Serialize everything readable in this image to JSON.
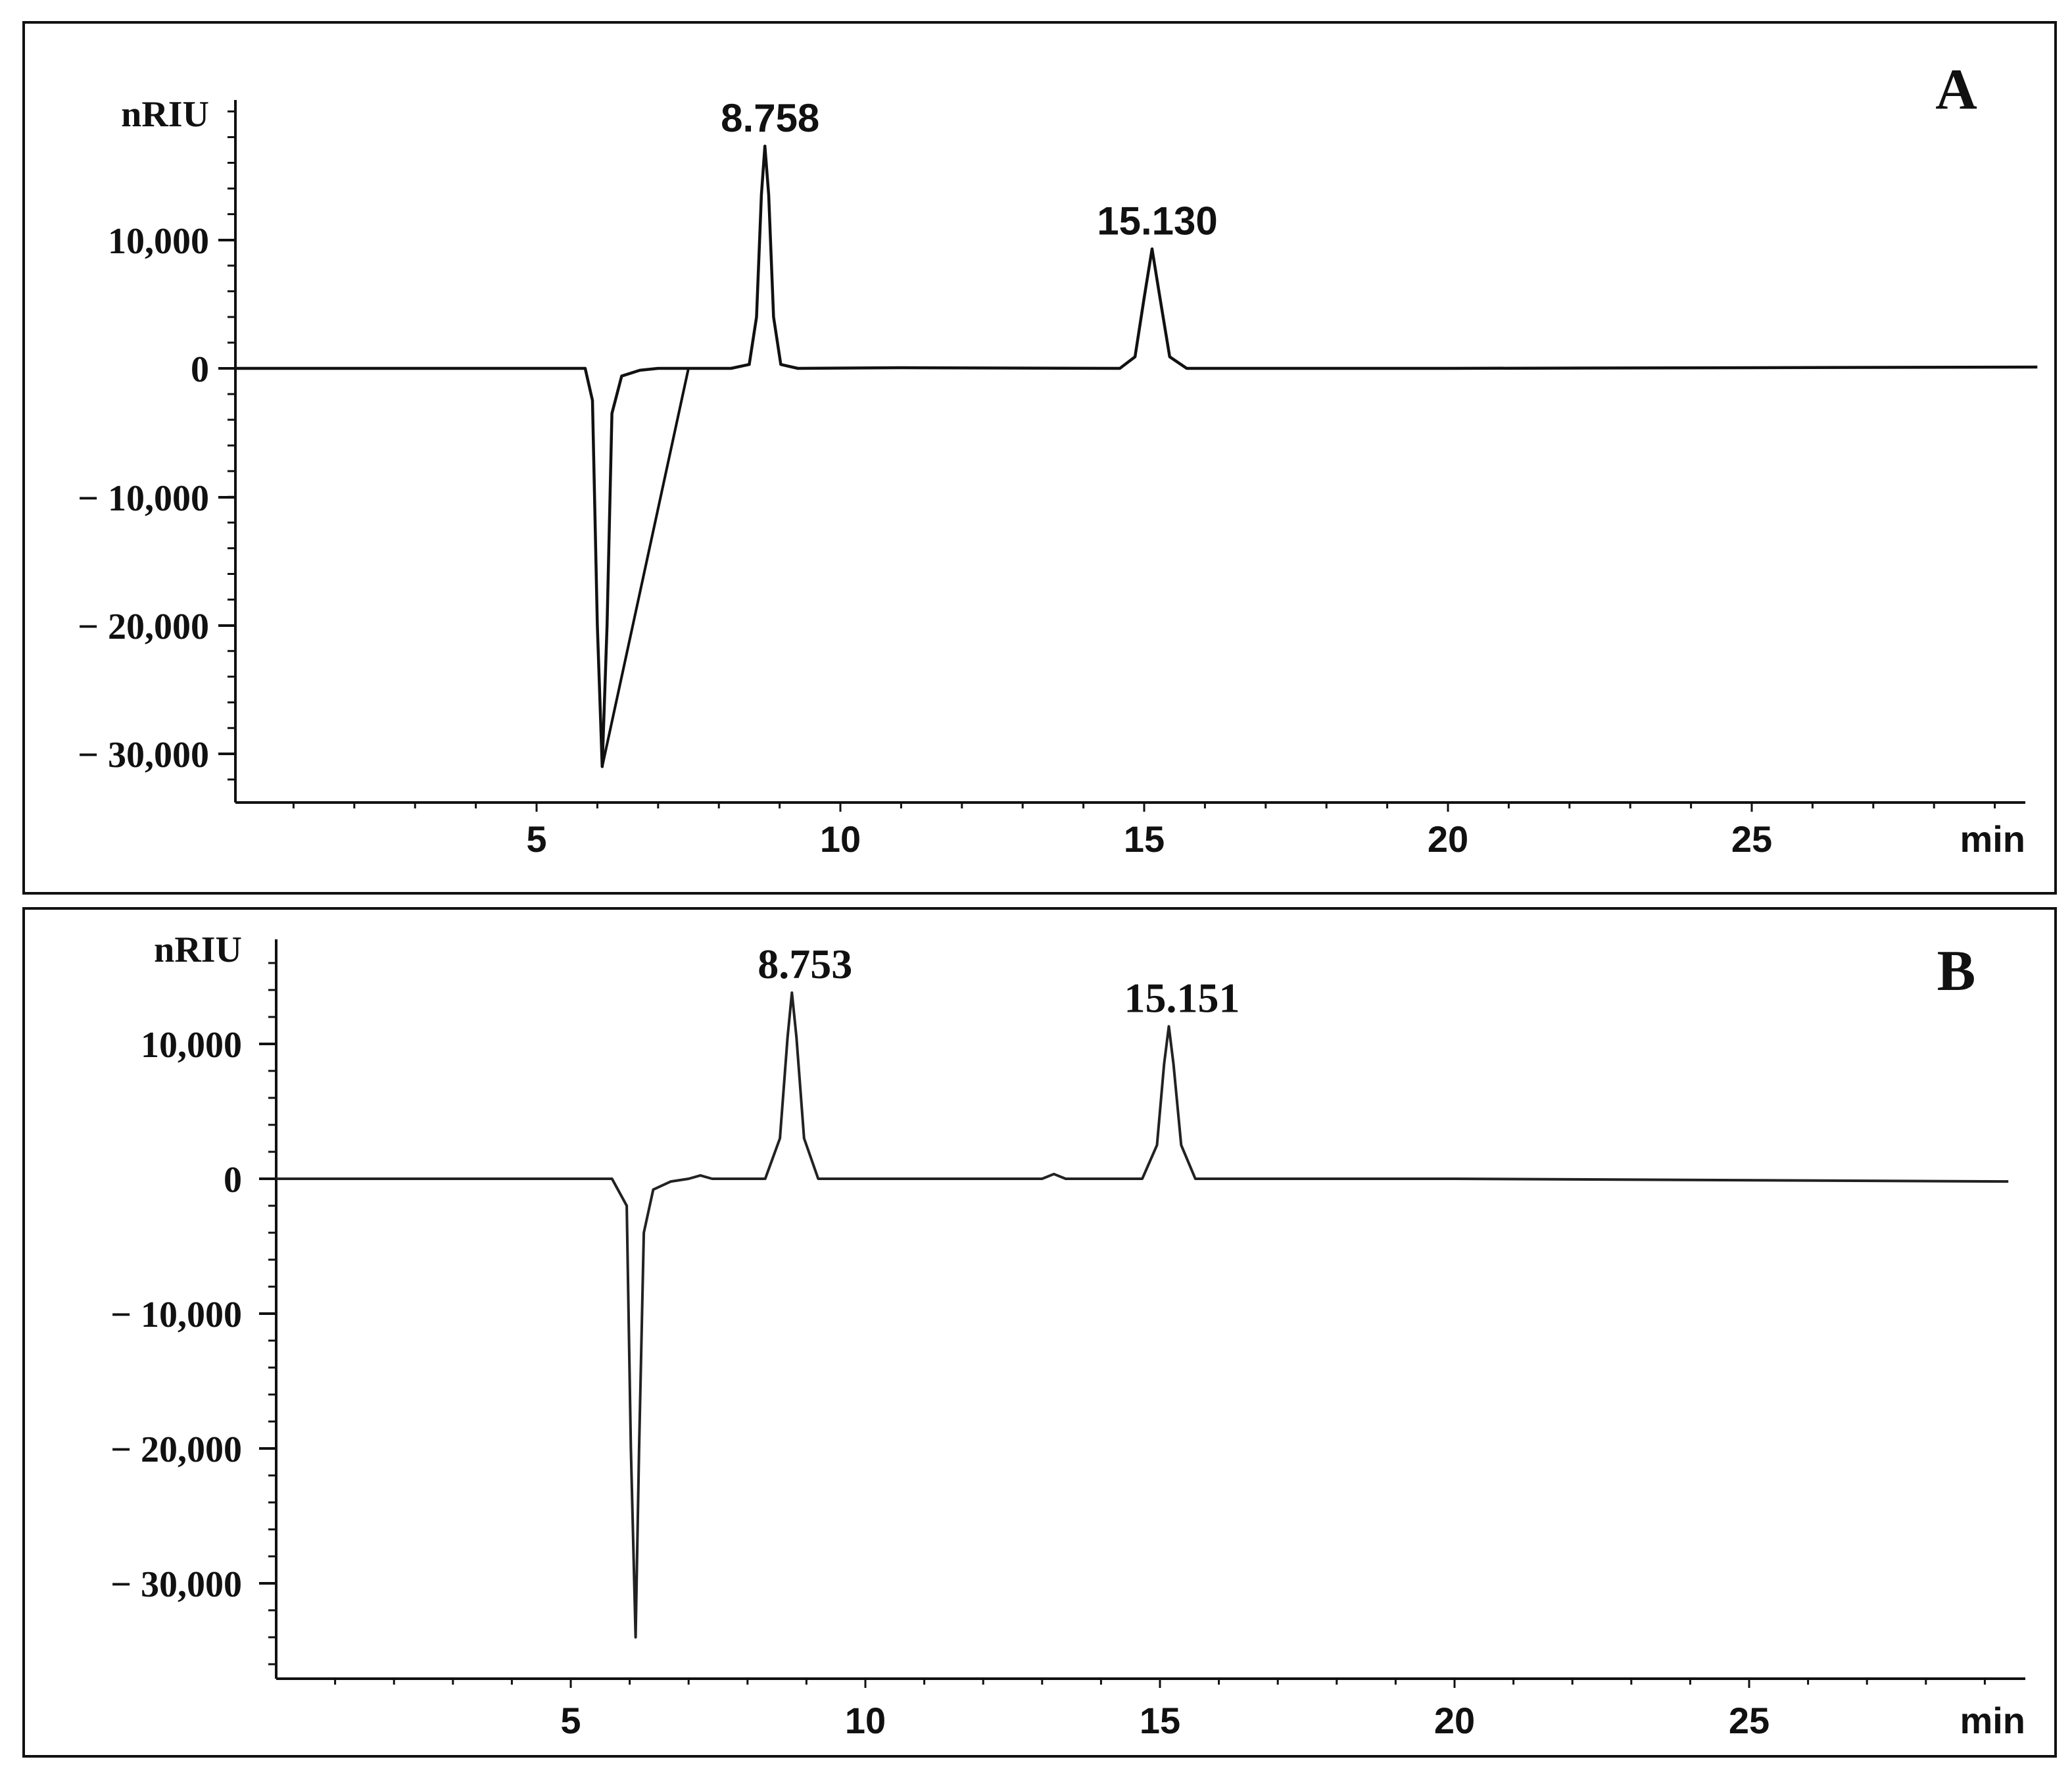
{
  "chart_data": [
    {
      "type": "line",
      "panel_label": "A",
      "ylabel": "nRIU",
      "xunit": "min",
      "xlim": [
        0,
        29.7
      ],
      "ylim": [
        -34000,
        20500
      ],
      "x_ticks": [
        "5",
        "10",
        "15",
        "20",
        "25"
      ],
      "y_ticks": [
        "10,000",
        "0",
        "− 10,000",
        "− 20,000",
        "− 30,000"
      ],
      "series": [
        {
          "x": [
            0,
            1.3,
            4.2,
            5.8,
            5.92,
            6.0,
            6.08,
            6.16,
            6.24,
            6.4,
            6.7,
            7.0,
            8.2,
            8.5,
            8.62,
            8.7,
            8.758,
            8.82,
            8.9,
            9.02,
            9.3,
            11.0,
            14.6,
            14.85,
            15.0,
            15.13,
            15.26,
            15.42,
            15.7,
            20.0,
            29.7
          ],
          "y": [
            0,
            0,
            0,
            0,
            -2500,
            -20000,
            -31000,
            -20000,
            -3500,
            -600,
            -150,
            0,
            0,
            300,
            4000,
            13500,
            17300,
            13500,
            4000,
            300,
            0,
            50,
            0,
            900,
            5500,
            9300,
            5500,
            900,
            0,
            0,
            100
          ]
        }
      ],
      "baseline": {
        "x": [
          6.08,
          7.5
        ],
        "y": [
          -31000,
          0
        ]
      },
      "annotations": [
        {
          "text": "8.758",
          "x": 8.758,
          "y": 17300
        },
        {
          "text": "15.130",
          "x": 15.13,
          "y": 9300
        }
      ]
    },
    {
      "type": "line",
      "panel_label": "B",
      "ylabel": "nRIU",
      "xunit": "min",
      "xlim": [
        0,
        29.4
      ],
      "ylim": [
        -36500,
        18000
      ],
      "x_ticks": [
        "5",
        "10",
        "15",
        "20",
        "25"
      ],
      "y_ticks": [
        "10,000",
        "0",
        "− 10,000",
        "− 20,000",
        "− 30,000"
      ],
      "series": [
        {
          "x": [
            0,
            1.5,
            5.7,
            5.95,
            6.02,
            6.1,
            6.16,
            6.24,
            6.4,
            6.7,
            7.0,
            7.2,
            7.4,
            8.3,
            8.55,
            8.68,
            8.753,
            8.83,
            8.96,
            9.2,
            13.0,
            13.2,
            13.4,
            14.7,
            14.95,
            15.07,
            15.151,
            15.23,
            15.36,
            15.6,
            20.0,
            29.4
          ],
          "y": [
            0,
            0,
            0,
            -2000,
            -20000,
            -34000,
            -20000,
            -4000,
            -800,
            -200,
            0,
            250,
            0,
            0,
            3000,
            10500,
            13800,
            10500,
            3000,
            0,
            0,
            350,
            0,
            0,
            2500,
            8500,
            11300,
            8500,
            2500,
            0,
            0,
            -200
          ]
        }
      ],
      "annotations": [
        {
          "text": "8.753",
          "x": 8.753,
          "y": 13800
        },
        {
          "text": "15.151",
          "x": 15.151,
          "y": 11300
        }
      ]
    }
  ]
}
